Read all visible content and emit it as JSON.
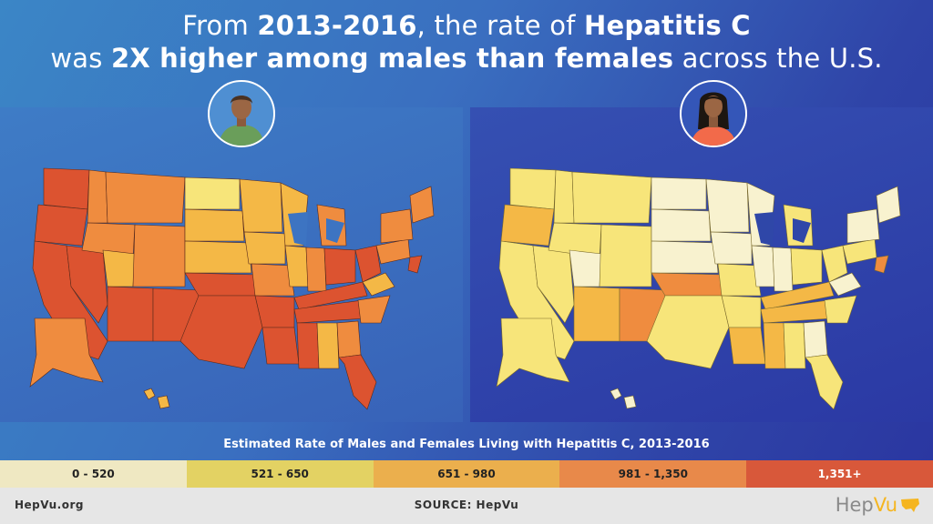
{
  "headline": {
    "line1_pre": "From ",
    "line1_bold1": "2013-2016",
    "line1_mid": ", the rate of ",
    "line1_bold2": "Hepatitis C",
    "line2_pre": "was ",
    "line2_bold": "2X higher among males than females",
    "line2_post": " across the U.S."
  },
  "avatars": {
    "male": "male-avatar-icon",
    "female": "female-avatar-icon"
  },
  "legend": {
    "title": "Estimated Rate of Males and Females Living with Hepatitis C, 2013-2016",
    "bins": [
      {
        "label": "0 - 520",
        "color": "#efe8c2"
      },
      {
        "label": "521 - 650",
        "color": "#e3d263"
      },
      {
        "label": "651 - 980",
        "color": "#ebaf4d"
      },
      {
        "label": "981 - 1,350",
        "color": "#e8894a"
      },
      {
        "label": "1,351+",
        "color": "#d8583a"
      }
    ]
  },
  "footer": {
    "site": "HepVu.org",
    "source": "SOURCE: HepVu",
    "logo_part1": "Hep",
    "logo_part2": "Vu"
  },
  "colors": {
    "bin1": "#f8f2cf",
    "bin2": "#f7e57a",
    "bin3": "#f4b846",
    "bin4": "#ef8c3f",
    "bin5": "#dc5330"
  }
}
